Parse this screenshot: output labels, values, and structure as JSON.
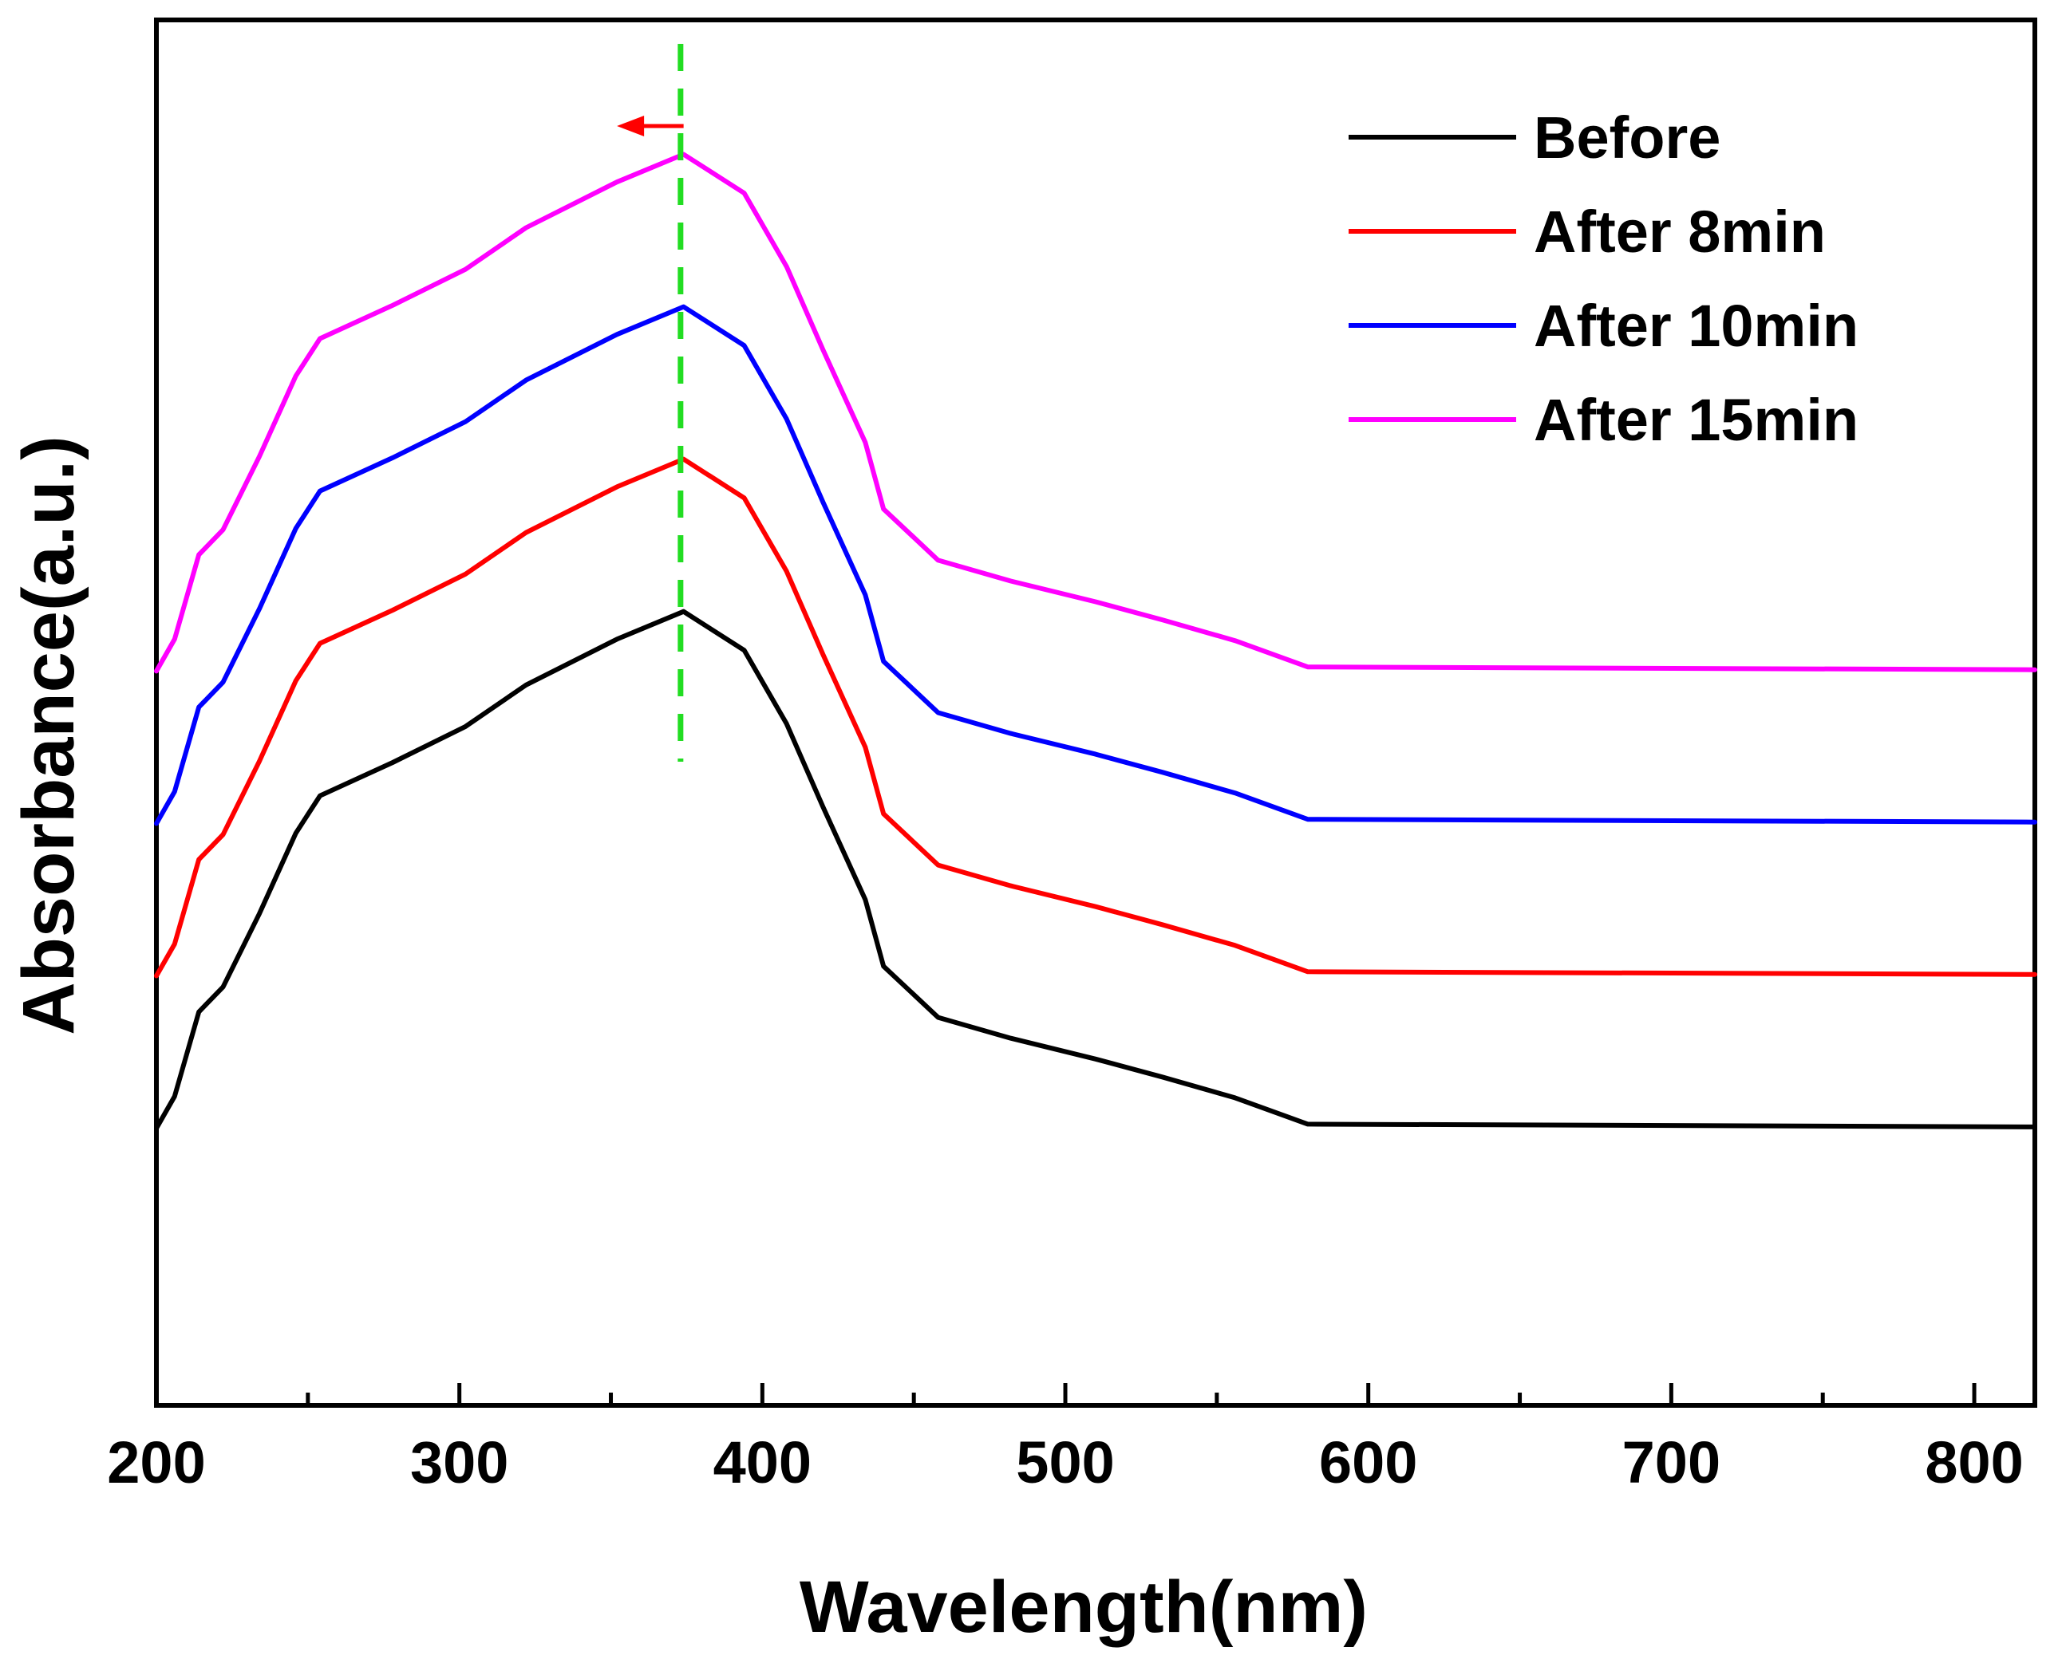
{
  "chart_data": {
    "type": "line",
    "title": "",
    "xlabel": "Wavelength(nm)",
    "ylabel": "Absorbance(a.u.)",
    "xlim": [
      200,
      820
    ],
    "ylim": [
      0,
      1.0
    ],
    "xticks": [
      "200",
      "300",
      "400",
      "500",
      "600",
      "700",
      "800"
    ],
    "xtick_values": [
      200,
      300,
      400,
      500,
      600,
      700,
      800
    ],
    "y_ticks_labeled": false,
    "legend_position": "top-right",
    "series": [
      {
        "name": "Before",
        "color": "#000000",
        "x": [
          200,
          206,
          214,
          222,
          234,
          246,
          254,
          278,
          302,
          322,
          352,
          374,
          394,
          408,
          420,
          434,
          440,
          458,
          482,
          510,
          532,
          556,
          580,
          820
        ],
        "y": [
          0.2,
          0.223,
          0.284,
          0.302,
          0.355,
          0.413,
          0.44,
          0.464,
          0.49,
          0.52,
          0.553,
          0.573,
          0.545,
          0.492,
          0.432,
          0.365,
          0.317,
          0.28,
          0.265,
          0.25,
          0.237,
          0.222,
          0.203,
          0.201
        ]
      },
      {
        "name": "After 8min",
        "color": "#ff0000",
        "x": [
          200,
          206,
          214,
          222,
          234,
          246,
          254,
          278,
          302,
          322,
          352,
          374,
          394,
          408,
          420,
          434,
          440,
          458,
          482,
          510,
          532,
          556,
          580,
          820
        ],
        "y": [
          0.31,
          0.333,
          0.394,
          0.412,
          0.465,
          0.523,
          0.55,
          0.574,
          0.6,
          0.63,
          0.663,
          0.683,
          0.655,
          0.602,
          0.542,
          0.475,
          0.427,
          0.39,
          0.375,
          0.36,
          0.347,
          0.332,
          0.313,
          0.311
        ]
      },
      {
        "name": "After 10min",
        "color": "#0000ff",
        "x": [
          200,
          206,
          214,
          222,
          234,
          246,
          254,
          278,
          302,
          322,
          352,
          374,
          394,
          408,
          420,
          434,
          440,
          458,
          482,
          510,
          532,
          556,
          580,
          820
        ],
        "y": [
          0.42,
          0.443,
          0.504,
          0.522,
          0.575,
          0.633,
          0.66,
          0.684,
          0.71,
          0.74,
          0.773,
          0.793,
          0.765,
          0.712,
          0.652,
          0.585,
          0.537,
          0.5,
          0.485,
          0.47,
          0.457,
          0.442,
          0.423,
          0.421
        ]
      },
      {
        "name": "After 15min",
        "color": "#ff00ff",
        "x": [
          200,
          206,
          214,
          222,
          234,
          246,
          254,
          278,
          302,
          322,
          352,
          374,
          394,
          408,
          420,
          434,
          440,
          458,
          482,
          510,
          532,
          556,
          580,
          820
        ],
        "y": [
          0.53,
          0.553,
          0.614,
          0.632,
          0.685,
          0.743,
          0.77,
          0.794,
          0.82,
          0.85,
          0.883,
          0.903,
          0.875,
          0.822,
          0.762,
          0.695,
          0.647,
          0.61,
          0.595,
          0.58,
          0.567,
          0.552,
          0.533,
          0.531
        ]
      }
    ],
    "annotations": {
      "reference_line_x": 373,
      "reference_line_color": "#22dd22",
      "arrow_color": "#ff0000",
      "arrow_from_x": 374,
      "arrow_to_x": 352
    }
  }
}
